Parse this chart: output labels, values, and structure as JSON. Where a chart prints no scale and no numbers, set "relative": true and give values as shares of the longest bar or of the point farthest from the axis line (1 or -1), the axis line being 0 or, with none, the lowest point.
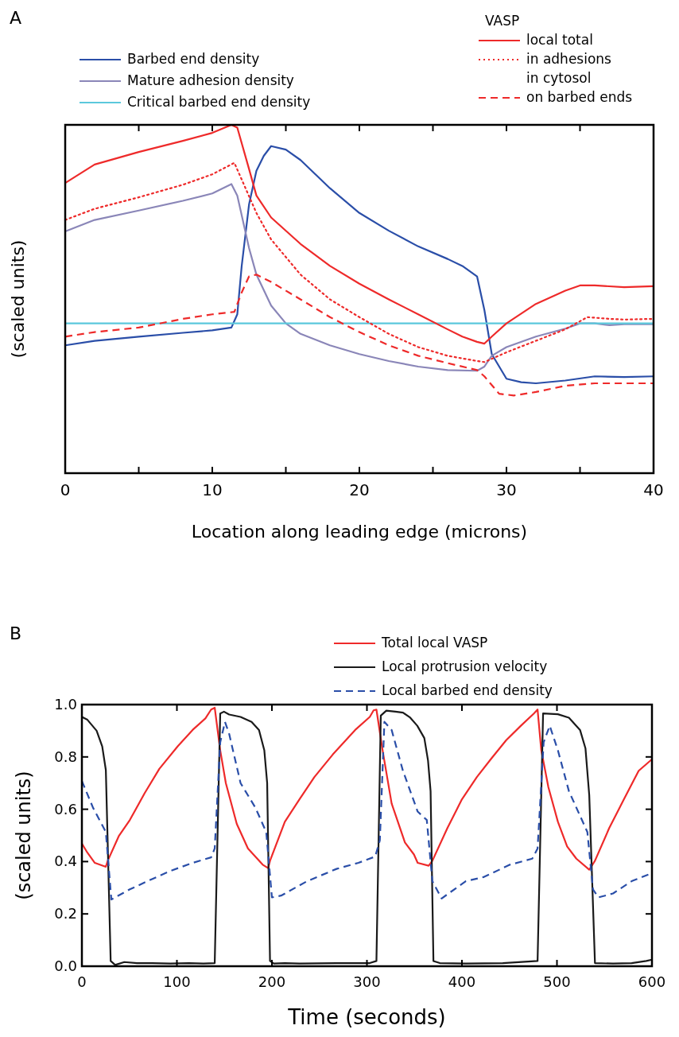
{
  "chart_data": [
    {
      "type": "line",
      "title": "A",
      "xlabel": "Location along leading edge (microns)",
      "ylabel": "(scaled units)",
      "relative": true,
      "legend": "top",
      "legend_title": "VASP",
      "grid": false,
      "xlim": [
        0,
        40
      ],
      "xticks": [
        0,
        {
          "value": 5,
          "label": null
        },
        10,
        {
          "value": 15,
          "label": null
        },
        20,
        {
          "value": 25,
          "label": null
        },
        30,
        {
          "value": 35,
          "label": null
        },
        40
      ],
      "annotations": [
        "in cytosol"
      ],
      "series": [
        {
          "name": "Barbed end density",
          "color": "#2a4ea8",
          "line_style": "solid",
          "x": [
            0,
            2,
            5,
            8,
            10,
            11.3,
            11.7,
            12,
            12.5,
            13,
            13.5,
            14,
            15,
            16,
            18,
            20,
            22,
            24,
            26,
            27,
            28,
            28.5,
            29,
            30,
            31,
            32,
            34,
            36,
            38,
            40
          ],
          "values": [
            0.367,
            0.38,
            0.392,
            0.403,
            0.41,
            0.418,
            0.456,
            0.595,
            0.772,
            0.868,
            0.911,
            0.939,
            0.929,
            0.899,
            0.818,
            0.747,
            0.696,
            0.651,
            0.615,
            0.595,
            0.565,
            0.468,
            0.342,
            0.271,
            0.261,
            0.258,
            0.266,
            0.278,
            0.276,
            0.278
          ]
        },
        {
          "name": "Mature adhesion density",
          "color": "#8a86b8",
          "line_style": "solid",
          "x": [
            0,
            2,
            5,
            8,
            10,
            11.3,
            11.7,
            12.5,
            13,
            14,
            15,
            16,
            18,
            20,
            22,
            24,
            26,
            28,
            28.5,
            29,
            30,
            32,
            34,
            35,
            36,
            37,
            38,
            40
          ],
          "values": [
            0.694,
            0.727,
            0.754,
            0.782,
            0.803,
            0.83,
            0.797,
            0.646,
            0.57,
            0.481,
            0.43,
            0.4,
            0.367,
            0.342,
            0.322,
            0.306,
            0.296,
            0.294,
            0.306,
            0.337,
            0.362,
            0.392,
            0.415,
            0.43,
            0.43,
            0.425,
            0.428,
            0.428
          ]
        },
        {
          "name": "Critical barbed end density",
          "color": "#5bc8dc",
          "line_style": "solid",
          "x": [
            0,
            40
          ],
          "values": [
            0.43,
            0.43
          ]
        },
        {
          "name": "local total",
          "color": "#ee2a2a",
          "line_style": "solid",
          "x": [
            0,
            2,
            5,
            8,
            10,
            11.3,
            11.7,
            12.5,
            13,
            14,
            16,
            18,
            20,
            22,
            24,
            26,
            27,
            28,
            28.5,
            29,
            30,
            32,
            34,
            35,
            36,
            38,
            40
          ],
          "values": [
            0.833,
            0.886,
            0.922,
            0.954,
            0.977,
            1,
            0.992,
            0.873,
            0.797,
            0.734,
            0.658,
            0.595,
            0.544,
            0.499,
            0.456,
            0.413,
            0.392,
            0.377,
            0.372,
            0.392,
            0.43,
            0.486,
            0.524,
            0.539,
            0.539,
            0.534,
            0.537
          ]
        },
        {
          "name": "in adhesions",
          "color": "#ee2a2a",
          "line_style": "dotted",
          "x": [
            0,
            2,
            5,
            8,
            10,
            11.5,
            12,
            13,
            14,
            16,
            18,
            20,
            22,
            24,
            26,
            28,
            28.5,
            30,
            32,
            34,
            35.5,
            37,
            38,
            40
          ],
          "values": [
            0.727,
            0.759,
            0.792,
            0.828,
            0.858,
            0.891,
            0.843,
            0.747,
            0.671,
            0.57,
            0.499,
            0.448,
            0.4,
            0.362,
            0.337,
            0.322,
            0.319,
            0.347,
            0.38,
            0.413,
            0.448,
            0.443,
            0.441,
            0.443
          ]
        },
        {
          "name": "on barbed ends",
          "color": "#ee2a2a",
          "line_style": "dashed",
          "x": [
            0,
            2,
            5,
            8,
            10,
            11.5,
            12,
            12.5,
            13,
            14,
            16,
            18,
            20,
            22,
            24,
            26,
            28,
            28.5,
            29.5,
            30.5,
            32,
            34,
            36,
            38,
            40
          ],
          "values": [
            0.392,
            0.405,
            0.418,
            0.443,
            0.456,
            0.463,
            0.519,
            0.565,
            0.57,
            0.549,
            0.499,
            0.448,
            0.405,
            0.367,
            0.337,
            0.316,
            0.296,
            0.278,
            0.228,
            0.223,
            0.233,
            0.251,
            0.258,
            0.258,
            0.258
          ]
        }
      ]
    },
    {
      "type": "line",
      "title": "B",
      "xlabel": "Time (seconds)",
      "ylabel": "(scaled units)",
      "legend": "top right",
      "grid": false,
      "xlim": [
        0,
        600
      ],
      "xticks": [
        0,
        100,
        200,
        300,
        400,
        500,
        600
      ],
      "ylim": [
        0,
        1
      ],
      "yticks": [
        {
          "value": 0,
          "label": "0.0"
        },
        {
          "value": 0.2,
          "label": "0.2"
        },
        {
          "value": 0.4,
          "label": "0.4"
        },
        {
          "value": 0.6,
          "label": "0.6"
        },
        {
          "value": 0.8,
          "label": "0.8"
        },
        {
          "value": 1,
          "label": "1.0"
        }
      ],
      "series": [
        {
          "name": "Total local VASP",
          "color": "#ee2a2a",
          "line_style": "solid",
          "x": [
            0,
            5.8,
            13.6,
            25.2,
            27.2,
            38.8,
            50.5,
            66,
            81.6,
            101,
            116.5,
            130,
            136,
            139.8,
            145.6,
            151.5,
            163,
            174.8,
            190.3,
            196,
            198,
            213.6,
            229,
            244.7,
            264,
            287.6,
            303,
            307,
            310,
            316.5,
            326,
            340,
            349.5,
            353.4,
            365,
            368.9,
            384.7,
            400,
            415.7,
            431,
            446.6,
            462,
            475.7,
            479.6,
            483.5,
            491,
            501,
            510.7,
            520.4,
            534,
            540,
            555,
            570.5,
            586,
            600
          ],
          "values": [
            0.469,
            0.434,
            0.395,
            0.38,
            0.403,
            0.497,
            0.559,
            0.661,
            0.755,
            0.841,
            0.903,
            0.947,
            0.981,
            0.988,
            0.825,
            0.7,
            0.544,
            0.45,
            0.388,
            0.375,
            0.403,
            0.552,
            0.638,
            0.723,
            0.809,
            0.903,
            0.953,
            0.978,
            0.981,
            0.825,
            0.622,
            0.473,
            0.427,
            0.395,
            0.384,
            0.403,
            0.528,
            0.638,
            0.723,
            0.794,
            0.864,
            0.919,
            0.966,
            0.981,
            0.825,
            0.684,
            0.552,
            0.458,
            0.411,
            0.369,
            0.403,
            0.528,
            0.638,
            0.747,
            0.791
          ]
        },
        {
          "name": "Local protrusion velocity",
          "color": "#1a1a1a",
          "line_style": "solid",
          "x": [
            0,
            5.8,
            15.5,
            21.4,
            25.2,
            30.3,
            35,
            44.7,
            58,
            73.8,
            93,
            112.6,
            128,
            139.8,
            145.6,
            149.5,
            155,
            167,
            178.6,
            186.4,
            192,
            195,
            198,
            202,
            213.6,
            229,
            268,
            303,
            310,
            314.6,
            320.4,
            330,
            338,
            345.6,
            353,
            360.4,
            364.3,
            367,
            370,
            376.7,
            404,
            443,
            479.6,
            485.4,
            501,
            512.6,
            524.3,
            530,
            534,
            540,
            559,
            578.6,
            594,
            600
          ],
          "values": [
            0.953,
            0.942,
            0.9,
            0.84,
            0.75,
            0.02,
            0.005,
            0.016,
            0.012,
            0.012,
            0.01,
            0.012,
            0.01,
            0.012,
            0.966,
            0.973,
            0.962,
            0.953,
            0.934,
            0.903,
            0.825,
            0.7,
            0.02,
            0.01,
            0.012,
            0.01,
            0.012,
            0.012,
            0.02,
            0.958,
            0.977,
            0.973,
            0.969,
            0.95,
            0.919,
            0.872,
            0.786,
            0.669,
            0.02,
            0.012,
            0.01,
            0.012,
            0.02,
            0.966,
            0.963,
            0.95,
            0.903,
            0.833,
            0.653,
            0.012,
            0.01,
            0.012,
            0.02,
            0.025
          ]
        },
        {
          "name": "Local barbed end density",
          "color": "#2a4ea8",
          "line_style": "dashed",
          "x": [
            0,
            11.7,
            25.2,
            31,
            50.5,
            73.8,
            93,
            116.5,
            136,
            139.8,
            145.6,
            150.6,
            155,
            167,
            182.6,
            194,
            200,
            209.7,
            237,
            268,
            291,
            308.7,
            313.6,
            318.4,
            326,
            337.9,
            353.4,
            363,
            368.9,
            378.6,
            404,
            423,
            450.5,
            474,
            479.6,
            486,
            492.4,
            501,
            512.6,
            532,
            537.9,
            543.7,
            559,
            578.6,
            600
          ],
          "values": [
            0.708,
            0.606,
            0.513,
            0.255,
            0.294,
            0.333,
            0.364,
            0.395,
            0.416,
            0.45,
            0.856,
            0.934,
            0.888,
            0.7,
            0.606,
            0.513,
            0.263,
            0.27,
            0.325,
            0.372,
            0.395,
            0.419,
            0.481,
            0.934,
            0.903,
            0.747,
            0.591,
            0.559,
            0.325,
            0.259,
            0.325,
            0.341,
            0.388,
            0.411,
            0.45,
            0.856,
            0.919,
            0.825,
            0.669,
            0.513,
            0.294,
            0.263,
            0.278,
            0.325,
            0.356
          ]
        }
      ]
    }
  ]
}
